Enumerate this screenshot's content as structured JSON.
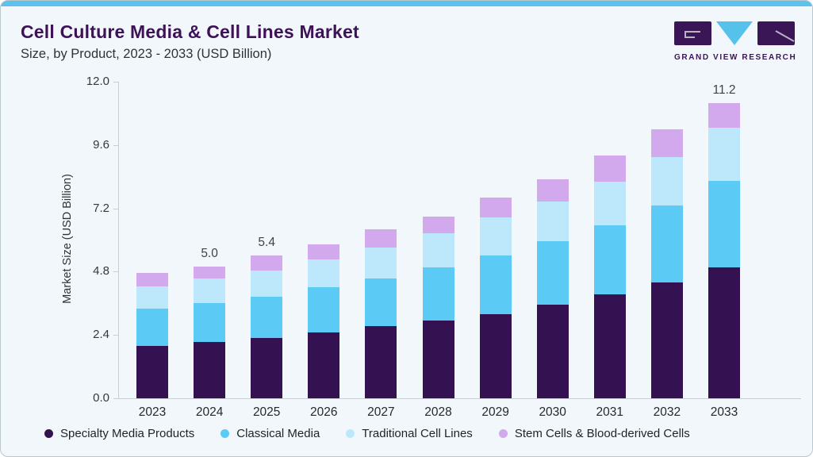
{
  "header": {
    "title": "Cell Culture Media & Cell Lines Market",
    "subtitle": "Size, by Product, 2023 - 2033 (USD Billion)",
    "logo_text": "GRAND VIEW RESEARCH"
  },
  "colors": {
    "accent_bar": "#59C2ED",
    "card_background": "#F1F7FB",
    "title_text": "#3D1257",
    "axis_line": "#C9CED4"
  },
  "chart_data": {
    "type": "bar",
    "subtype": "stacked-vertical",
    "title": "Cell Culture Media & Cell Lines Market Size, by Product, 2023 - 2033 (USD Billion)",
    "xlabel": "",
    "ylabel": "Market Size (USD Billion)",
    "ylim": [
      0,
      12
    ],
    "yticks": [
      0,
      2.4,
      4.8,
      7.2,
      9.6,
      12
    ],
    "grid": false,
    "legend_position": "bottom",
    "categories": [
      "2023",
      "2024",
      "2025",
      "2026",
      "2027",
      "2028",
      "2029",
      "2030",
      "2031",
      "2032",
      "2033"
    ],
    "series": [
      {
        "name": "Specialty Media Products",
        "color": "#341150",
        "values": [
          2.0,
          2.15,
          2.3,
          2.5,
          2.75,
          2.95,
          3.2,
          3.55,
          3.95,
          4.4,
          4.95
        ]
      },
      {
        "name": "Classical Media",
        "color": "#5BCAF4",
        "values": [
          1.4,
          1.45,
          1.55,
          1.7,
          1.8,
          2.0,
          2.2,
          2.4,
          2.6,
          2.9,
          3.3
        ]
      },
      {
        "name": "Traditional Cell Lines",
        "color": "#BDE8FB",
        "values": [
          0.85,
          0.95,
          1.0,
          1.05,
          1.15,
          1.3,
          1.45,
          1.5,
          1.65,
          1.85,
          2.0
        ]
      },
      {
        "name": "Stem Cells & Blood-derived Cells",
        "color": "#D2A9EC",
        "values": [
          0.5,
          0.45,
          0.55,
          0.6,
          0.7,
          0.65,
          0.75,
          0.85,
          1.0,
          1.05,
          0.95
        ]
      }
    ],
    "totals": [
      4.75,
      5.0,
      5.4,
      5.85,
      6.4,
      6.9,
      7.6,
      8.3,
      9.2,
      10.2,
      11.2
    ],
    "bar_labels": {
      "2024": "5.0",
      "2025": "5.4",
      "2033": "11.2"
    }
  }
}
